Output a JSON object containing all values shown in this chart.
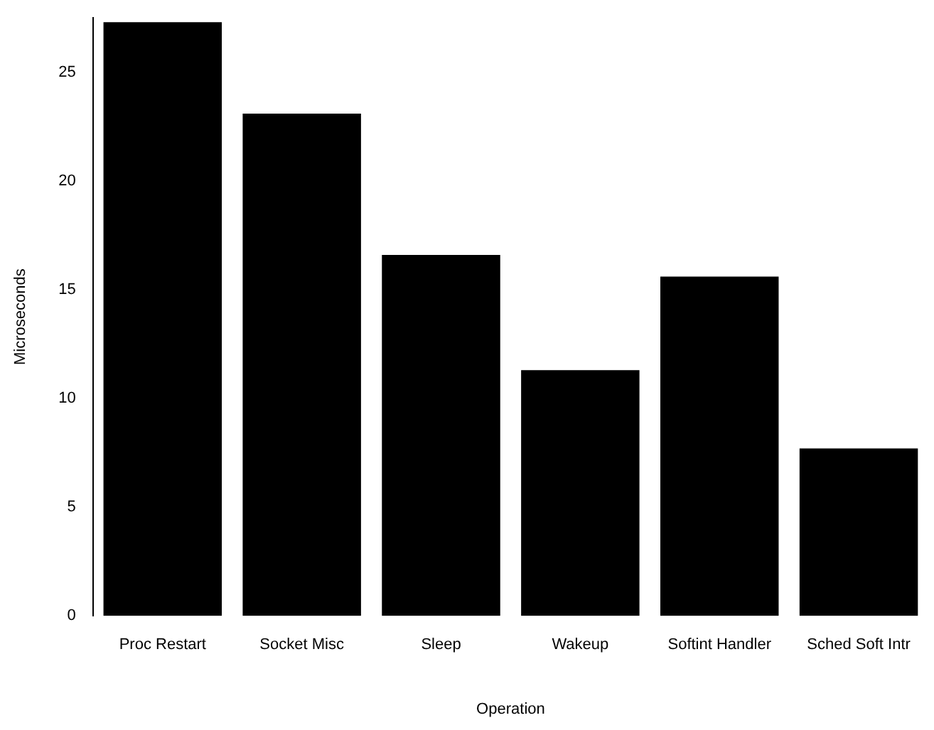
{
  "chart_data": {
    "type": "bar",
    "xlabel": "Operation",
    "ylabel": "Microseconds",
    "categories": [
      "Proc Restart",
      "Socket Misc",
      "Sleep",
      "Wakeup",
      "Softint Handler",
      "Sched Soft Intr"
    ],
    "values": [
      27.3,
      23.1,
      16.6,
      11.3,
      15.6,
      7.7
    ],
    "color": "#000000",
    "ylim": [
      0,
      27.5
    ],
    "yticks": [
      0,
      5,
      10,
      15,
      20,
      25
    ],
    "grid": false,
    "legend": false
  }
}
